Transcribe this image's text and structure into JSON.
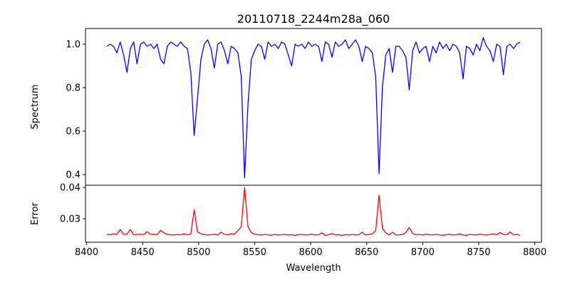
{
  "chart_data": [
    {
      "type": "line",
      "title": "20110718_2244m28a_060",
      "ylabel": "Spectrum",
      "xlabel": "",
      "x_start": 8418,
      "x_step": 3,
      "xlim": [
        8399,
        8806
      ],
      "ylim": [
        0.351,
        1.072
      ],
      "yticks": [
        "0.4",
        "0.6",
        "0.8",
        "1.0"
      ],
      "ytick_values": [
        0.4,
        0.6,
        0.8,
        1.0
      ],
      "color": "#0000ff",
      "values": [
        0.99,
        1.0,
        0.99,
        0.96,
        1.01,
        0.95,
        0.87,
        0.98,
        1.01,
        0.91,
        1.0,
        1.01,
        0.99,
        1.0,
        0.98,
        1.0,
        0.93,
        0.91,
        0.99,
        1.01,
        1.0,
        0.99,
        1.01,
        0.99,
        0.98,
        0.87,
        0.58,
        0.75,
        0.93,
        1.0,
        1.02,
        0.98,
        0.89,
        1.0,
        1.01,
        0.97,
        0.91,
        0.99,
        0.98,
        0.96,
        0.85,
        0.385,
        0.72,
        0.93,
        0.97,
        1.0,
        0.99,
        0.93,
        1.01,
        0.99,
        1.0,
        0.98,
        1.01,
        1.0,
        0.95,
        0.9,
        1.0,
        0.99,
        1.0,
        0.98,
        1.01,
        0.99,
        1.0,
        0.99,
        0.92,
        1.01,
        1.0,
        0.94,
        1.01,
        0.99,
        1.0,
        1.02,
        0.98,
        1.0,
        1.02,
        0.99,
        0.92,
        0.99,
        0.98,
        0.96,
        0.85,
        0.405,
        0.8,
        0.95,
        0.98,
        0.87,
        0.99,
        0.99,
        0.97,
        0.94,
        0.79,
        0.97,
        1.01,
        0.96,
        0.98,
        0.99,
        0.92,
        0.99,
        0.96,
        1.01,
        0.98,
        1.0,
        0.97,
        1.0,
        0.99,
        0.96,
        0.84,
        0.99,
        0.98,
        0.95,
        1.0,
        0.97,
        1.03,
        0.99,
        0.97,
        0.92,
        1.0,
        0.99,
        0.86,
        0.99,
        1.0,
        0.98,
        1.0,
        1.01
      ]
    },
    {
      "type": "line",
      "ylabel": "Error",
      "xlabel": "Wavelength",
      "x_start": 8418,
      "x_step": 3,
      "xlim": [
        8399,
        8806
      ],
      "ylim": [
        0.0225,
        0.0407
      ],
      "yticks": [
        "0.03",
        "0.04"
      ],
      "ytick_values": [
        0.03,
        0.04
      ],
      "xticks": [
        "8400",
        "8450",
        "8500",
        "8550",
        "8600",
        "8650",
        "8700",
        "8750",
        "8800"
      ],
      "xtick_values": [
        8400,
        8450,
        8500,
        8550,
        8600,
        8650,
        8700,
        8750,
        8800
      ],
      "color": "#ff0000",
      "values": [
        0.025,
        0.0249,
        0.0252,
        0.025,
        0.0266,
        0.025,
        0.0251,
        0.0266,
        0.0249,
        0.025,
        0.0251,
        0.0249,
        0.0259,
        0.025,
        0.0251,
        0.0249,
        0.0263,
        0.0255,
        0.025,
        0.0249,
        0.0248,
        0.025,
        0.0249,
        0.0252,
        0.0249,
        0.0251,
        0.0328,
        0.0258,
        0.0252,
        0.025,
        0.0248,
        0.0249,
        0.0251,
        0.0248,
        0.0257,
        0.025,
        0.0249,
        0.0252,
        0.0251,
        0.0262,
        0.0275,
        0.04,
        0.0275,
        0.0256,
        0.0251,
        0.0249,
        0.0248,
        0.025,
        0.0249,
        0.0247,
        0.025,
        0.0248,
        0.0249,
        0.025,
        0.0248,
        0.0249,
        0.0247,
        0.0249,
        0.025,
        0.0248,
        0.0249,
        0.0251,
        0.0248,
        0.0249,
        0.0255,
        0.0247,
        0.0249,
        0.0253,
        0.0248,
        0.0249,
        0.0247,
        0.0249,
        0.0248,
        0.025,
        0.0248,
        0.0249,
        0.0257,
        0.0248,
        0.025,
        0.0252,
        0.0262,
        0.0375,
        0.027,
        0.0255,
        0.0249,
        0.0257,
        0.0249,
        0.0248,
        0.025,
        0.0256,
        0.0272,
        0.0253,
        0.0249,
        0.025,
        0.0248,
        0.0251,
        0.0249,
        0.0248,
        0.025,
        0.0249,
        0.0247,
        0.0249,
        0.0251,
        0.0248,
        0.0249,
        0.0252,
        0.0248,
        0.0247,
        0.025,
        0.0249,
        0.0248,
        0.0251,
        0.0249,
        0.0248,
        0.025,
        0.0252,
        0.0249,
        0.0256,
        0.025,
        0.0249,
        0.0258,
        0.0249,
        0.025,
        0.0247
      ]
    }
  ]
}
